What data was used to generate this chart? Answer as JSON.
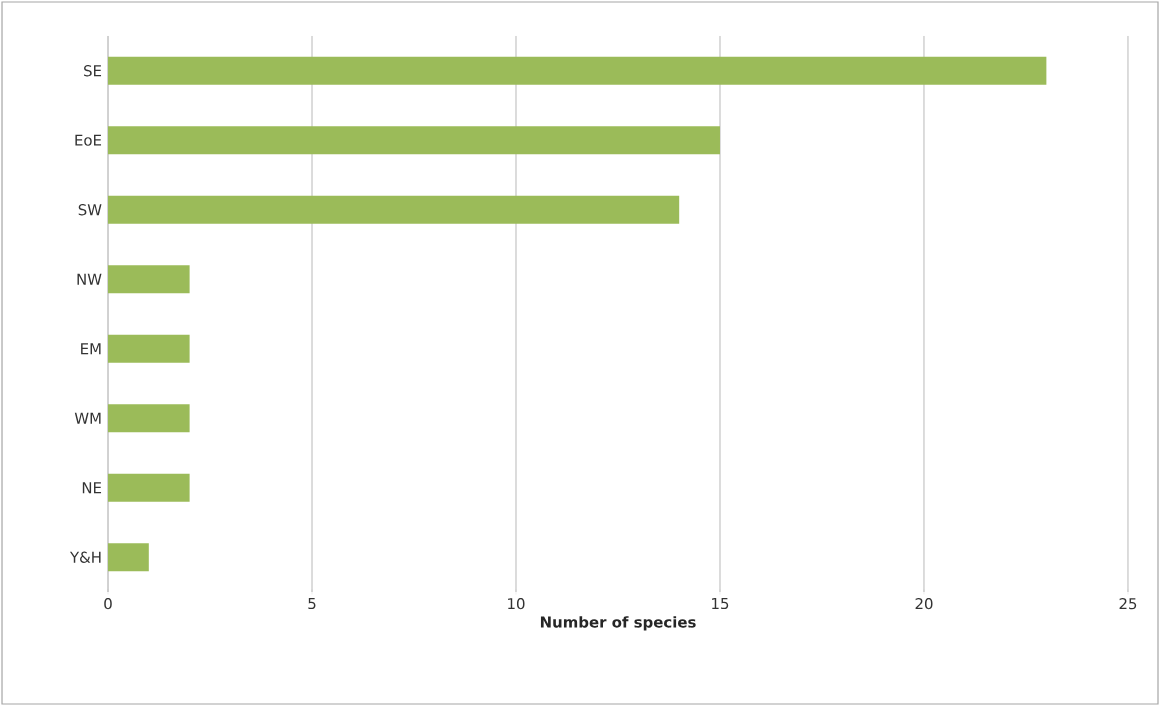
{
  "chart_data": {
    "type": "bar",
    "orientation": "horizontal",
    "xlabel": "Number of species",
    "categories": [
      "SE",
      "EoE",
      "SW",
      "NW",
      "EM",
      "WM",
      "NE",
      "Y&H"
    ],
    "values": [
      23,
      15,
      14,
      2,
      2,
      2,
      2,
      1
    ],
    "color": "#9bbb59",
    "xlim": [
      0,
      25
    ],
    "xticks": [
      0,
      5,
      10,
      15,
      20,
      25
    ],
    "grid": "x"
  }
}
